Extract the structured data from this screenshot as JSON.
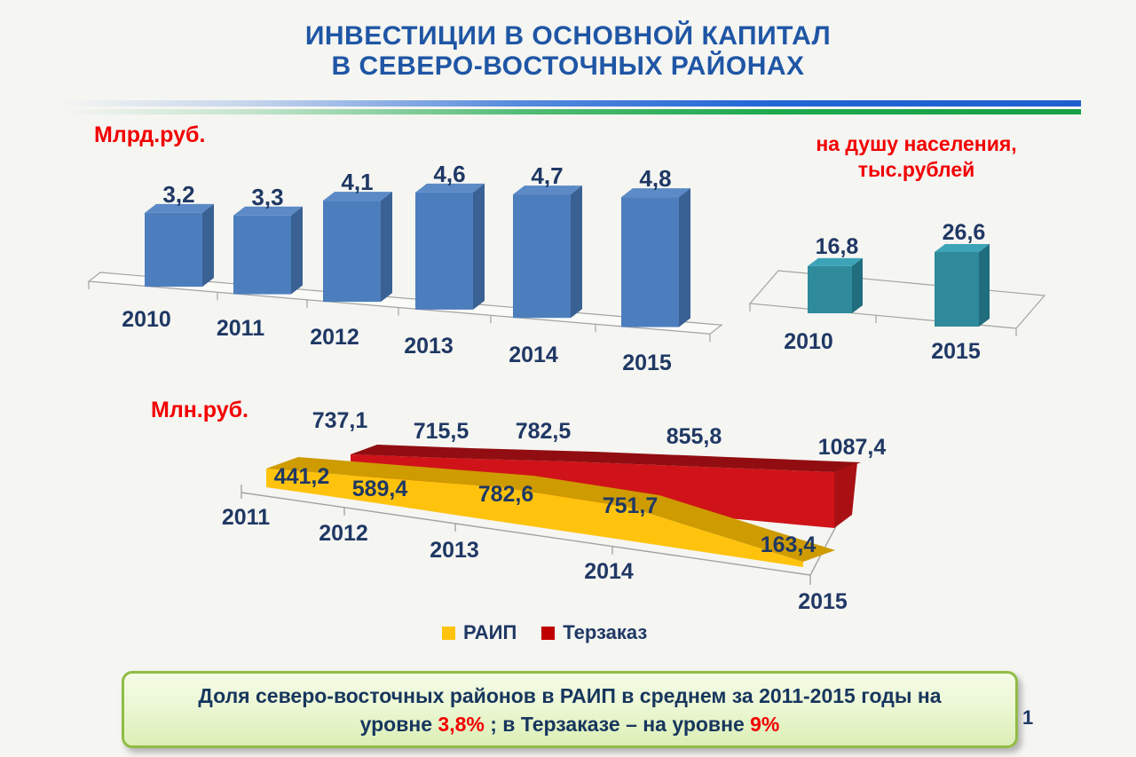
{
  "slide": {
    "title_line1": "ИНВЕСТИЦИИ В ОСНОВНОЙ КАПИТАЛ",
    "title_line2": "В СЕВЕРО-ВОСТОЧНЫХ РАЙОНАХ",
    "page_number": "1",
    "colors": {
      "title_blue": "#1F56A5",
      "label_navy": "#1F3864",
      "unit_red": "#F20000",
      "divider_blue": "#2166D6",
      "divider_green": "#1CA94C",
      "background": "#F5F5F2",
      "axis_gray": "#A3A3A3"
    }
  },
  "chart_data": [
    {
      "type": "bar",
      "title": "Млрд.руб.",
      "categories": [
        "2010",
        "2011",
        "2012",
        "2013",
        "2014",
        "2015"
      ],
      "values": [
        3.2,
        3.3,
        4.1,
        4.6,
        4.7,
        4.8
      ],
      "style": "3d-column",
      "decimal_separator": ",",
      "bar_colors": {
        "front": "#4C7EBE",
        "top": "#5B8AC6",
        "side": "#3A6193"
      }
    },
    {
      "type": "bar",
      "title": "на душу населения,\nтыс.рублей",
      "categories": [
        "2010",
        "2015"
      ],
      "values": [
        16.8,
        26.6
      ],
      "style": "3d-column",
      "decimal_separator": ",",
      "bar_colors": {
        "front": "#2F8A9B",
        "top": "#3DA3B8",
        "side": "#1F6D7D"
      }
    },
    {
      "type": "area",
      "title": "Млн.руб.",
      "categories": [
        "2011",
        "2012",
        "2013",
        "2014",
        "2015"
      ],
      "style": "3d-area",
      "decimal_separator": ",",
      "legend_position": "bottom",
      "series": [
        {
          "name": "РАИП",
          "color": "#FFC30E",
          "top_color": "#CE9B00",
          "cap_color": "#B8890B",
          "values": [
            441.2,
            589.4,
            782.6,
            751.7,
            163.4
          ]
        },
        {
          "name": "Терзаказ",
          "color": "#CF1318",
          "top_color": "#910D11",
          "cap_color": "#A81014",
          "values": [
            737.1,
            715.5,
            782.5,
            855.8,
            1087.4
          ]
        }
      ]
    }
  ],
  "footer": {
    "line1": "Доля северо-восточных районов в РАИП в среднем за 2011-2015 годы на",
    "line2_pre": "уровне ",
    "highlight1": "3,8%",
    "line2_mid": " ; в Терзаказе – на уровне ",
    "highlight2": "9%",
    "highlight_color": "#F20000",
    "box_border": "#8FBC44"
  }
}
